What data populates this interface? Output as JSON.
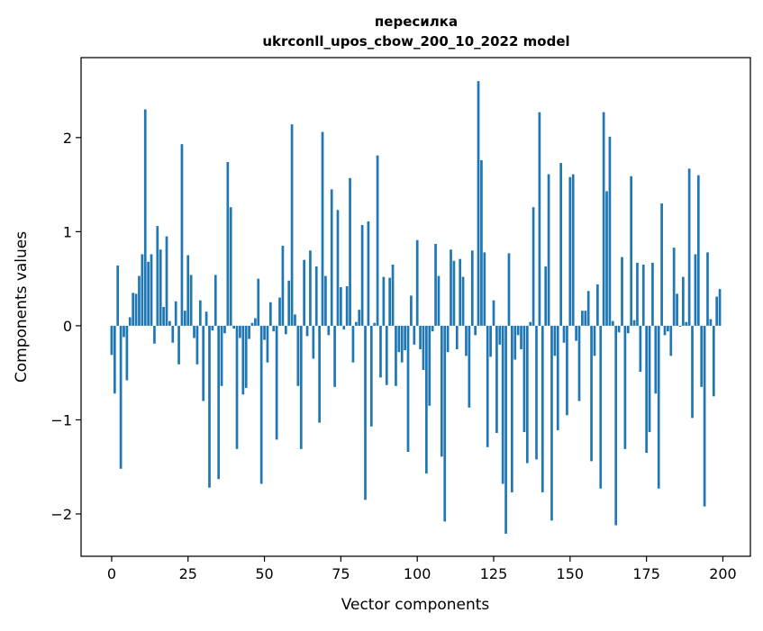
{
  "chart_data": {
    "type": "bar",
    "title_line1": "пересилка",
    "title_line2": "ukrconll_upos_cbow_200_10_2022 model",
    "xlabel": "Vector components",
    "ylabel": "Components values",
    "xlim": [
      -10,
      209
    ],
    "ylim": [
      -2.45,
      2.85
    ],
    "xticks": [
      0,
      25,
      50,
      75,
      100,
      125,
      150,
      175,
      200
    ],
    "yticks": [
      -2,
      -1,
      0,
      1,
      2
    ],
    "ytick_labels": [
      "−2",
      "−1",
      "0",
      "1",
      "2"
    ],
    "bar_color": "#1f77b4",
    "grid": false,
    "legend": "none",
    "x": [
      0,
      1,
      2,
      3,
      4,
      5,
      6,
      7,
      8,
      9,
      10,
      11,
      12,
      13,
      14,
      15,
      16,
      17,
      18,
      19,
      20,
      21,
      22,
      23,
      24,
      25,
      26,
      27,
      28,
      29,
      30,
      31,
      32,
      33,
      34,
      35,
      36,
      37,
      38,
      39,
      40,
      41,
      42,
      43,
      44,
      45,
      46,
      47,
      48,
      49,
      50,
      51,
      52,
      53,
      54,
      55,
      56,
      57,
      58,
      59,
      60,
      61,
      62,
      63,
      64,
      65,
      66,
      67,
      68,
      69,
      70,
      71,
      72,
      73,
      74,
      75,
      76,
      77,
      78,
      79,
      80,
      81,
      82,
      83,
      84,
      85,
      86,
      87,
      88,
      89,
      90,
      91,
      92,
      93,
      94,
      95,
      96,
      97,
      98,
      99,
      100,
      101,
      102,
      103,
      104,
      105,
      106,
      107,
      108,
      109,
      110,
      111,
      112,
      113,
      114,
      115,
      116,
      117,
      118,
      119,
      120,
      121,
      122,
      123,
      124,
      125,
      126,
      127,
      128,
      129,
      130,
      131,
      132,
      133,
      134,
      135,
      136,
      137,
      138,
      139,
      140,
      141,
      142,
      143,
      144,
      145,
      146,
      147,
      148,
      149,
      150,
      151,
      152,
      153,
      154,
      155,
      156,
      157,
      158,
      159,
      160,
      161,
      162,
      163,
      164,
      165,
      166,
      167,
      168,
      169,
      170,
      171,
      172,
      173,
      174,
      175,
      176,
      177,
      178,
      179,
      180,
      181,
      182,
      183,
      184,
      185,
      186,
      187,
      188,
      189,
      190,
      191,
      192,
      193,
      194,
      195,
      196,
      197,
      198,
      199
    ],
    "values": [
      -0.31,
      -0.72,
      0.64,
      -1.52,
      -0.12,
      -0.58,
      0.09,
      0.35,
      0.34,
      0.53,
      0.76,
      2.3,
      0.68,
      0.76,
      -0.19,
      1.06,
      0.81,
      0.2,
      0.95,
      0.05,
      -0.18,
      0.26,
      -0.41,
      1.93,
      0.16,
      0.75,
      0.54,
      -0.13,
      -0.41,
      0.27,
      -0.8,
      0.15,
      -1.72,
      -0.05,
      0.54,
      -1.63,
      -0.64,
      -0.08,
      1.74,
      1.26,
      -0.03,
      -1.31,
      -0.13,
      -0.73,
      -0.66,
      -0.14,
      0.03,
      0.08,
      0.5,
      -1.68,
      -0.15,
      -0.39,
      0.25,
      -0.06,
      -1.21,
      0.3,
      0.85,
      -0.09,
      0.48,
      2.14,
      0.12,
      -0.64,
      -1.31,
      0.7,
      -0.11,
      0.8,
      -0.35,
      0.63,
      -1.03,
      2.06,
      0.53,
      -0.1,
      1.45,
      -0.65,
      1.23,
      0.41,
      -0.04,
      0.42,
      1.57,
      -0.39,
      0.04,
      0.17,
      1.07,
      -1.85,
      1.11,
      -1.07,
      0.03,
      1.81,
      -0.55,
      0.52,
      -0.63,
      0.51,
      0.65,
      -0.64,
      -0.28,
      -0.39,
      -0.26,
      -1.34,
      0.32,
      -0.2,
      0.91,
      -0.25,
      -0.47,
      -1.57,
      -0.85,
      -0.06,
      0.87,
      0.53,
      -1.39,
      -2.08,
      -0.28,
      0.81,
      0.69,
      -0.25,
      0.71,
      0.52,
      -0.32,
      -0.87,
      0.8,
      -0.1,
      2.6,
      1.76,
      0.78,
      -1.29,
      -0.33,
      0.27,
      -1.14,
      -0.2,
      -1.68,
      -2.21,
      0.77,
      -1.77,
      -0.36,
      -0.1,
      -0.25,
      -1.13,
      -1.46,
      0.04,
      1.26,
      -1.42,
      2.27,
      -1.77,
      0.63,
      1.61,
      -2.07,
      -0.32,
      -1.11,
      1.73,
      -0.18,
      -0.95,
      1.58,
      1.61,
      -0.16,
      -0.8,
      0.16,
      0.16,
      0.37,
      -1.44,
      -0.32,
      0.44,
      -1.73,
      2.27,
      1.43,
      2.01,
      0.05,
      -2.12,
      -0.07,
      0.73,
      -1.31,
      -0.08,
      1.59,
      0.06,
      0.67,
      -0.49,
      0.65,
      -1.35,
      -1.13,
      0.67,
      -0.72,
      -1.73,
      1.3,
      -0.1,
      -0.06,
      -0.32,
      0.83,
      0.34,
      -0.01,
      0.52,
      0.04,
      1.67,
      -0.98,
      0.76,
      1.6,
      -0.65,
      -1.92,
      0.78,
      0.07,
      -0.75,
      0.31,
      0.39
    ]
  }
}
